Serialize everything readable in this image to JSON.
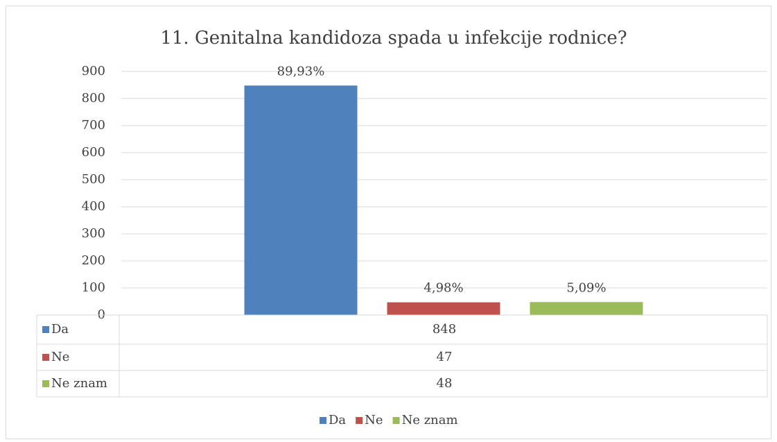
{
  "chart_data": {
    "type": "bar",
    "title": "11. Genitalna kandidoza spada u infekcije rodnice?",
    "categories": [
      null
    ],
    "series": [
      {
        "name": "Da",
        "color": "#4f81bd",
        "values": [
          848
        ],
        "percent_labels": [
          "89,93%"
        ]
      },
      {
        "name": "Ne",
        "color": "#c0504d",
        "values": [
          47
        ],
        "percent_labels": [
          "4,98%"
        ]
      },
      {
        "name": "Ne znam",
        "color": "#9bbb59",
        "values": [
          48
        ],
        "percent_labels": [
          "5,09%"
        ]
      }
    ],
    "ylim": [
      0,
      900
    ],
    "yticks": [
      0,
      100,
      200,
      300,
      400,
      500,
      600,
      700,
      800,
      900
    ],
    "grid": true,
    "legend": "bottom",
    "data_table": true
  }
}
